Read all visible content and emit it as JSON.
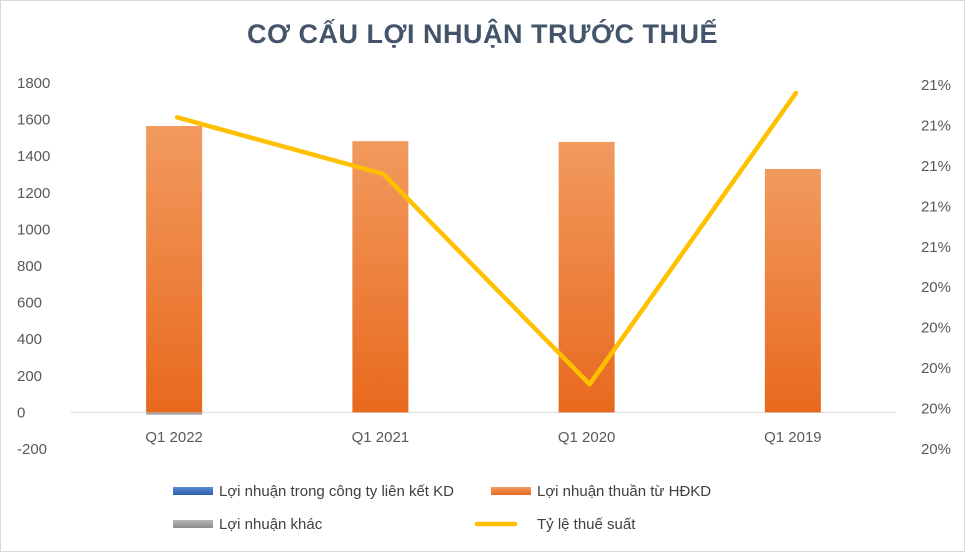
{
  "chart_data": {
    "type": "bar",
    "title": "CƠ CẤU LỢI NHUẬN TRƯỚC THUẾ",
    "categories": [
      "Q1 2022",
      "Q1 2021",
      "Q1 2020",
      "Q1 2019"
    ],
    "series": [
      {
        "name": "Lợi nhuận trong công ty liên kết KD",
        "type": "bar",
        "axis": "left",
        "color": "#4472c4",
        "values": [
          0,
          0,
          0,
          0
        ]
      },
      {
        "name": "Lợi nhuận thuần từ HĐKD",
        "type": "bar",
        "axis": "left",
        "color": "#ed7d31",
        "values": [
          1565,
          1482,
          1478,
          1330
        ]
      },
      {
        "name": "Lợi nhuận khác",
        "type": "bar",
        "axis": "left",
        "color": "#a5a5a5",
        "values": [
          -12,
          0,
          0,
          0
        ]
      },
      {
        "name": "Tỷ lệ thuế suất",
        "type": "line",
        "axis": "right",
        "color": "#ffc000",
        "values": [
          20.86,
          20.79,
          20.53,
          20.89
        ]
      }
    ],
    "y_left": {
      "min": -200,
      "max": 1800,
      "step": 200,
      "ticks": [
        "-200",
        "0",
        "200",
        "400",
        "600",
        "800",
        "1000",
        "1200",
        "1400",
        "1600",
        "1800"
      ]
    },
    "y_right": {
      "min": 20.45,
      "max": 20.9,
      "step": 0.05,
      "ticks": [
        "20%",
        "20%",
        "20%",
        "20%",
        "20%",
        "21%",
        "21%",
        "21%",
        "21%",
        "21%"
      ]
    },
    "legend_position": "bottom",
    "grid": false
  }
}
